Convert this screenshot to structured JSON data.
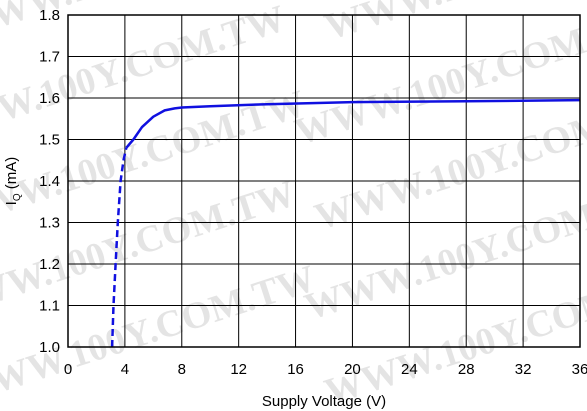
{
  "chart_data": {
    "type": "line",
    "title": "",
    "xlabel": "Supply Voltage (V)",
    "ylabel_main": "I",
    "ylabel_sub": "Q",
    "ylabel_unit": " (mA)",
    "xlim": [
      0,
      36
    ],
    "ylim": [
      1.0,
      1.8
    ],
    "xticks": [
      "0",
      "4",
      "8",
      "12",
      "16",
      "20",
      "24",
      "28",
      "32",
      "36"
    ],
    "yticks": [
      "1.0",
      "1.1",
      "1.2",
      "1.3",
      "1.4",
      "1.5",
      "1.6",
      "1.7",
      "1.8"
    ],
    "grid": true,
    "series": [
      {
        "style": "dashed",
        "color": "#1010e0",
        "x": [
          3.1,
          3.2,
          3.35,
          3.5,
          3.7,
          3.9,
          4.1
        ],
        "y": [
          1.0,
          1.1,
          1.2,
          1.3,
          1.4,
          1.45,
          1.48
        ]
      },
      {
        "style": "solid",
        "color": "#1010e0",
        "x": [
          4.1,
          4.6,
          5.2,
          6.0,
          6.8,
          7.5,
          8.0,
          10,
          14,
          20,
          28,
          36
        ],
        "y": [
          1.48,
          1.5,
          1.53,
          1.555,
          1.57,
          1.575,
          1.577,
          1.58,
          1.585,
          1.59,
          1.592,
          1.595
        ]
      }
    ]
  },
  "watermark": "WWW.100Y.COM.TW"
}
